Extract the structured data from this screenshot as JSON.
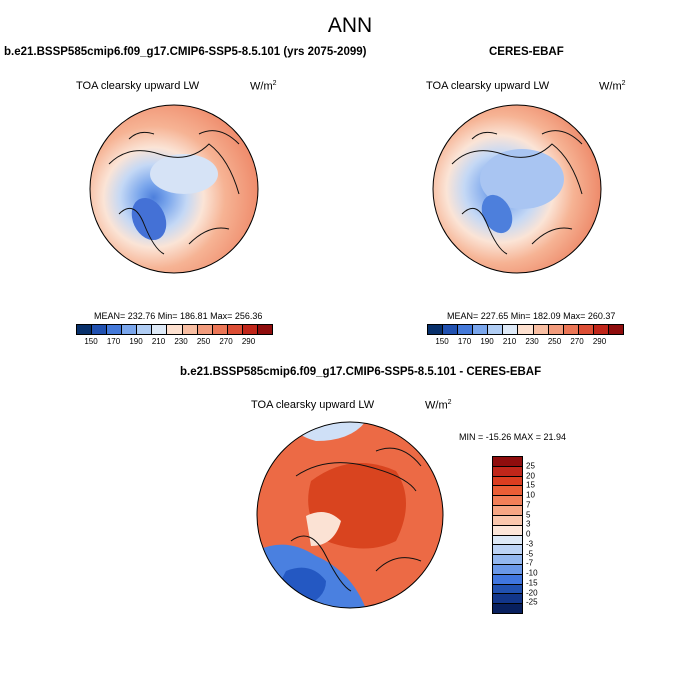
{
  "figure": {
    "season": "ANN"
  },
  "panels": {
    "left": {
      "title": "b.e21.BSSP585cmip6.f09_g17.CMIP6-SSP5-8.5.101 (yrs 2075-2099)",
      "variable": "TOA clearsky upward LW",
      "units_base": "W/m",
      "units_exp": "2",
      "stats": "MEAN= 232.76  Min= 186.81  Max= 256.36"
    },
    "right": {
      "title": "CERES-EBAF",
      "variable": "TOA clearsky upward LW",
      "units_base": "W/m",
      "units_exp": "2",
      "stats": "MEAN= 227.65  Min= 182.09  Max= 260.37"
    },
    "diff": {
      "title": "b.e21.BSSP585cmip6.f09_g17.CMIP6-SSP5-8.5.101 - CERES-EBAF",
      "variable": "TOA clearsky upward LW",
      "units_base": "W/m",
      "units_exp": "2",
      "stats": "MIN = -15.26 MAX =  21.94"
    }
  },
  "colorbars": {
    "field": {
      "ticks": [
        "150",
        "170",
        "190",
        "210",
        "230",
        "250",
        "270",
        "290"
      ],
      "colors": [
        "#08306b",
        "#2151b0",
        "#4479d9",
        "#7aa6ec",
        "#b0cdf4",
        "#dde9f7",
        "#fde0cf",
        "#f8bea2",
        "#f29b7c",
        "#eb7656",
        "#dc4e35",
        "#c0261a",
        "#8f0d0d"
      ]
    },
    "diff": {
      "ticks": [
        "25",
        "20",
        "15",
        "10",
        "7",
        "5",
        "3",
        "0",
        "-3",
        "-5",
        "-7",
        "-10",
        "-15",
        "-20",
        "-25"
      ],
      "colors": [
        "#8f0d0d",
        "#c0261a",
        "#dc3d20",
        "#eb5e36",
        "#f27f58",
        "#f7a684",
        "#fbc7ad",
        "#fde6d9",
        "#dde9f7",
        "#bcd3f5",
        "#93b7ef",
        "#6a98e8",
        "#4076df",
        "#2151b0",
        "#12368a",
        "#08205e"
      ]
    }
  },
  "chart_data": [
    {
      "type": "heatmap",
      "projection": "north polar stereographic",
      "title": "b.e21.BSSP585cmip6.f09_g17.CMIP6-SSP5-8.5.101 (yrs 2075-2099)",
      "variable": "TOA clearsky upward LW",
      "units": "W/m2",
      "mean": 232.76,
      "min": 186.81,
      "max": 256.36,
      "colorbar_levels": [
        150,
        170,
        190,
        210,
        230,
        250,
        270,
        290
      ]
    },
    {
      "type": "heatmap",
      "projection": "north polar stereographic",
      "title": "CERES-EBAF",
      "variable": "TOA clearsky upward LW",
      "units": "W/m2",
      "mean": 227.65,
      "min": 182.09,
      "max": 260.37,
      "colorbar_levels": [
        150,
        170,
        190,
        210,
        230,
        250,
        270,
        290
      ]
    },
    {
      "type": "heatmap",
      "projection": "north polar stereographic",
      "title": "b.e21.BSSP585cmip6.f09_g17.CMIP6-SSP5-8.5.101 - CERES-EBAF",
      "variable": "TOA clearsky upward LW",
      "units": "W/m2",
      "min": -15.26,
      "max": 21.94,
      "colorbar_levels": [
        25,
        20,
        15,
        10,
        7,
        5,
        3,
        0,
        -3,
        -5,
        -7,
        -10,
        -15,
        -20,
        -25
      ]
    }
  ]
}
